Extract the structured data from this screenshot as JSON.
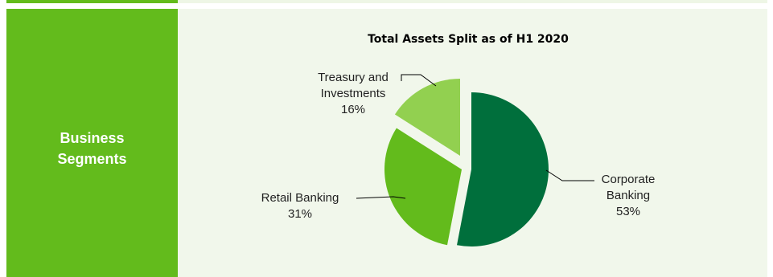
{
  "sidebar": {
    "label_line1": "Business",
    "label_line2": "Segments"
  },
  "colors": {
    "sidebar": "#63bb1c",
    "panel": "#f1f7eb",
    "corporate": "#006f3c",
    "retail": "#63bb1c",
    "treasury": "#92d050"
  },
  "chart_data": {
    "type": "pie",
    "title": "Total Assets Split as of  H1 2020",
    "slices": [
      {
        "label_lines": [
          "Corporate",
          "Banking"
        ],
        "value": 53,
        "value_label": "53%"
      },
      {
        "label_lines": [
          "Retail Banking"
        ],
        "value": 31,
        "value_label": "31%"
      },
      {
        "label_lines": [
          "Treasury and",
          "Investments"
        ],
        "value": 16,
        "value_label": "16%"
      }
    ],
    "exploded": true,
    "legend": "none"
  }
}
